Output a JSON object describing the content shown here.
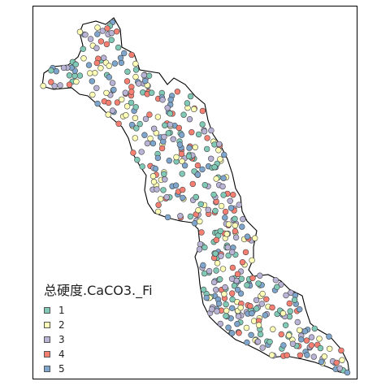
{
  "legend": {
    "title": "总硬度.CaCO3._Fi",
    "items": [
      {
        "label": "1",
        "color": "#7fc9b6"
      },
      {
        "label": "2",
        "color": "#ffffb8"
      },
      {
        "label": "3",
        "color": "#b9b4d6"
      },
      {
        "label": "4",
        "color": "#f77f72"
      },
      {
        "label": "5",
        "color": "#7ea6cd"
      }
    ]
  },
  "map": {
    "type": "point-map",
    "outline_color": "#000000",
    "point_stroke": "#444444"
  }
}
